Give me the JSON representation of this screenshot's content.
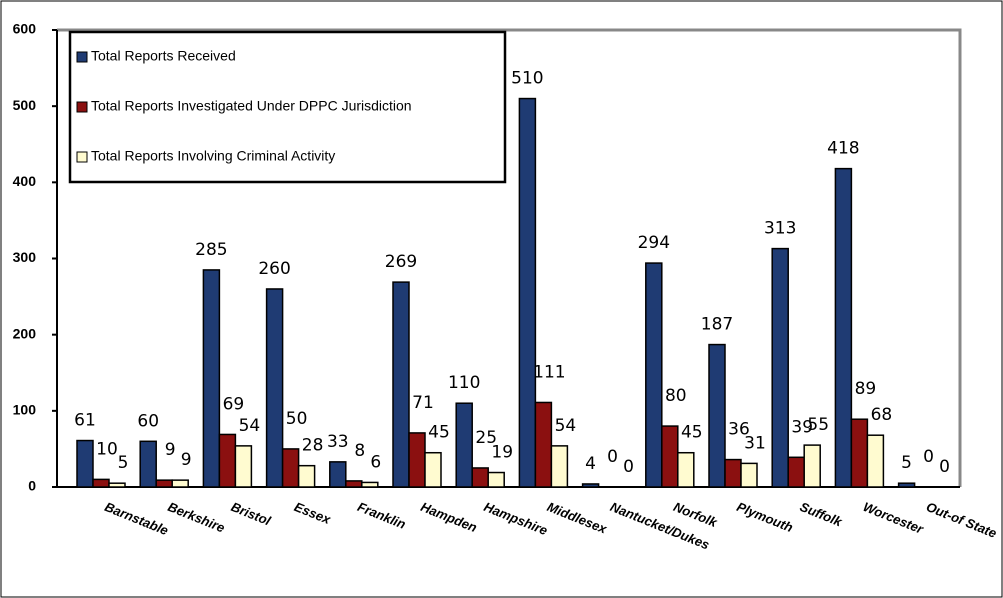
{
  "chart_data": {
    "type": "bar",
    "categories": [
      "Barnstable",
      "Berkshire",
      "Bristol",
      "Essex",
      "Franklin",
      "Hampden",
      "Hampshire",
      "Middlesex",
      "Nantucket/Dukes",
      "Norfolk",
      "Plymouth",
      "Suffolk",
      "Worcester",
      "Out-of State"
    ],
    "series": [
      {
        "name": "Total Reports Received",
        "color": "#1f3b73",
        "values": [
          61,
          60,
          285,
          260,
          33,
          269,
          110,
          510,
          4,
          294,
          187,
          313,
          418,
          5
        ]
      },
      {
        "name": "Total Reports Investigated Under DPPC Jurisdiction",
        "color": "#8b1010",
        "values": [
          10,
          9,
          69,
          50,
          8,
          71,
          25,
          111,
          0,
          80,
          36,
          39,
          89,
          0
        ]
      },
      {
        "name": "Total Reports Involving Criminal Activity",
        "color": "#fffbd0",
        "values": [
          5,
          9,
          54,
          28,
          6,
          45,
          19,
          54,
          0,
          45,
          31,
          55,
          68,
          0
        ]
      }
    ],
    "ylim": [
      0,
      600
    ],
    "yticks": [
      0,
      100,
      200,
      300,
      400,
      500,
      600
    ],
    "legend": "upper left"
  }
}
